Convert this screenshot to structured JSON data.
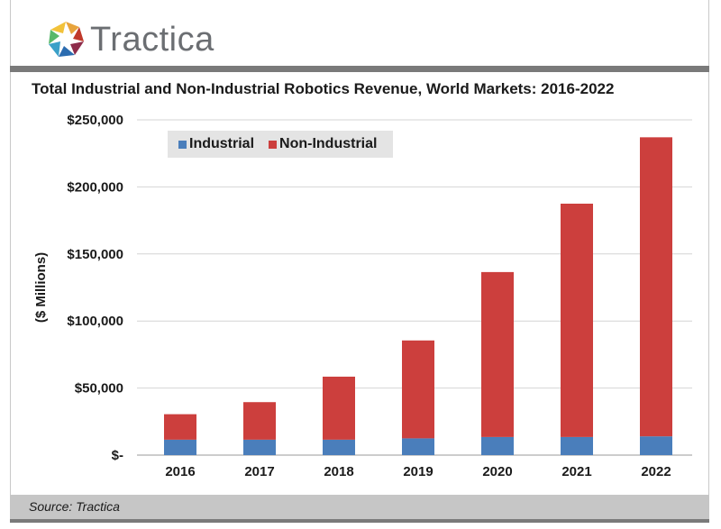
{
  "brand": {
    "name": "Tractica"
  },
  "footer": {
    "source": "Source: Tractica"
  },
  "chart_data": {
    "type": "bar",
    "stacked": true,
    "title": "Total Industrial and Non-Industrial Robotics Revenue, World Markets: 2016-2022",
    "xlabel": "",
    "ylabel": "($ Millions)",
    "categories": [
      "2016",
      "2017",
      "2018",
      "2019",
      "2020",
      "2021",
      "2022"
    ],
    "series": [
      {
        "name": "Industrial",
        "color": "#4a7ebb",
        "values": [
          11500,
          11500,
          11500,
          12500,
          13500,
          13500,
          14000
        ]
      },
      {
        "name": "Non-Industrial",
        "color": "#cc3f3d",
        "values": [
          19000,
          28000,
          47000,
          73000,
          123000,
          174000,
          223000
        ]
      }
    ],
    "ylim": [
      0,
      250000
    ],
    "yticks": [
      0,
      50000,
      100000,
      150000,
      200000,
      250000
    ],
    "ytick_labels": [
      "$-",
      "$50,000",
      "$100,000",
      "$150,000",
      "$200,000",
      "$250,000"
    ],
    "grid": true,
    "legend_position": "top-left"
  }
}
